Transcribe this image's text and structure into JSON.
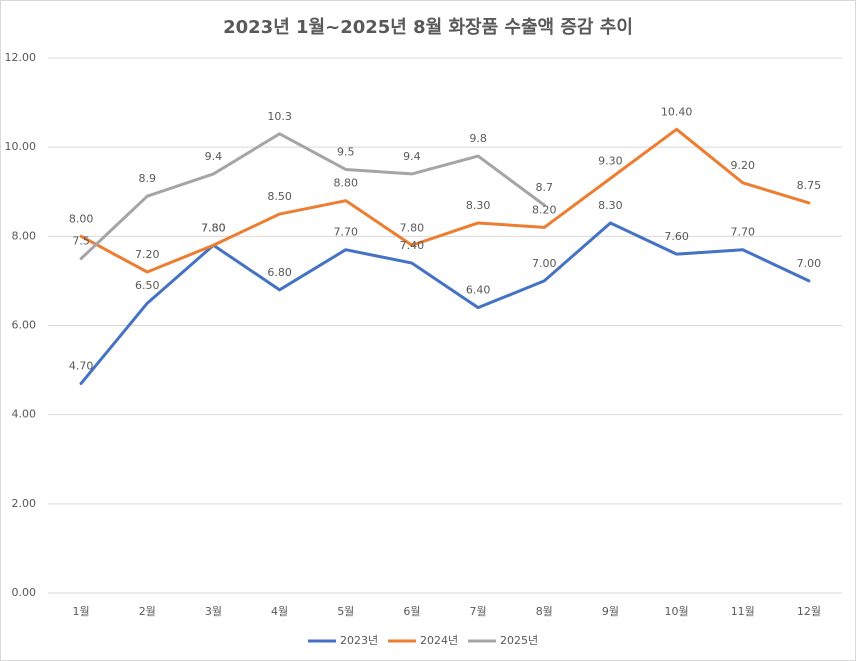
{
  "chart_data": {
    "type": "line",
    "title": "2023년 1월~2025년 8월 화장품 수출액 증감 추이",
    "categories": [
      "1월",
      "2월",
      "3월",
      "4월",
      "5월",
      "6월",
      "7월",
      "8월",
      "9월",
      "10월",
      "11월",
      "12월"
    ],
    "series": [
      {
        "name": "2023년",
        "color": "#4472c4",
        "values": [
          4.7,
          6.5,
          7.8,
          6.8,
          7.7,
          7.4,
          6.4,
          7.0,
          8.3,
          7.6,
          7.7,
          7.0
        ],
        "value_labels": [
          "4.70",
          "6.50",
          "7.80",
          "6.80",
          "7.70",
          "7.40",
          "6.40",
          "7.00",
          "8.30",
          "7.60",
          "7.70",
          "7.00"
        ]
      },
      {
        "name": "2024년",
        "color": "#ed7d31",
        "values": [
          8.0,
          7.2,
          7.8,
          8.5,
          8.8,
          7.8,
          8.3,
          8.2,
          9.3,
          10.4,
          9.2,
          8.75
        ],
        "value_labels": [
          "8.00",
          "7.20",
          "7.80",
          "8.50",
          "8.80",
          "7.80",
          "8.30",
          "8.20",
          "9.30",
          "10.40",
          "9.20",
          "8.75"
        ]
      },
      {
        "name": "2025년",
        "color": "#a5a5a5",
        "values": [
          7.5,
          8.9,
          9.4,
          10.3,
          9.5,
          9.4,
          9.8,
          8.7,
          null,
          null,
          null,
          null
        ]
      }
    ],
    "ylim": [
      0,
      12
    ],
    "yticks": [
      {
        "value": 0,
        "label": "0.00"
      },
      {
        "value": 2,
        "label": "2.00"
      },
      {
        "value": 4,
        "label": "4.00"
      },
      {
        "value": 6,
        "label": "6.00"
      },
      {
        "value": 8,
        "label": "8.00"
      },
      {
        "value": 10,
        "label": "10.00"
      },
      {
        "value": 12,
        "label": "12.00"
      }
    ],
    "grid": true,
    "legend": "bottom"
  }
}
